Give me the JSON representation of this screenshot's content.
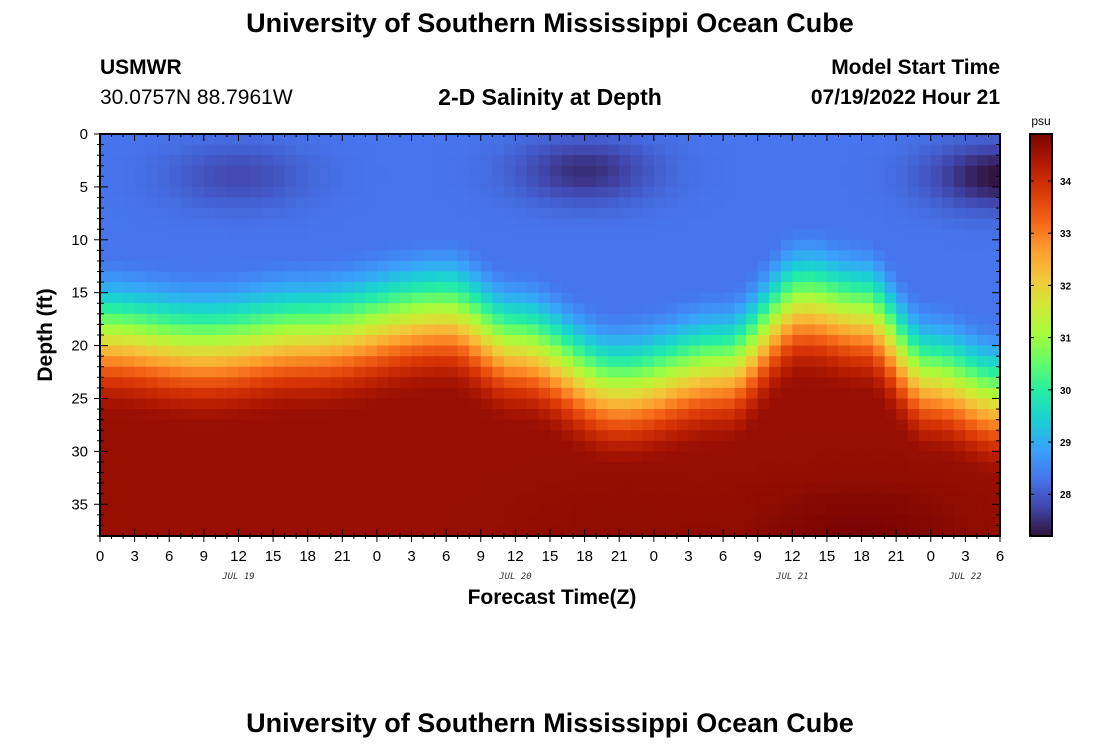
{
  "header": {
    "title": "University of Southern Mississippi Ocean Cube",
    "station": "USMWR",
    "coords": "30.0757N  88.7961W",
    "subtitle": "2-D Salinity at Depth",
    "model_start_label": "Model Start Time",
    "model_start_value": "07/19/2022 Hour 21"
  },
  "footer": {
    "title": "University of Southern Mississippi Ocean Cube"
  },
  "colors": {
    "ramp": [
      "#30123b",
      "#4145ab",
      "#4675ed",
      "#39a2fc",
      "#1bcfd4",
      "#24eca6",
      "#61fc6c",
      "#a4fc3b",
      "#d1e834",
      "#f3c63a",
      "#fe9b2d",
      "#f36315",
      "#d93806",
      "#b11901",
      "#7a0403"
    ]
  },
  "chart_data": {
    "type": "heatmap",
    "title": "2-D Salinity at Depth",
    "xlabel": "Forecast Time(Z)",
    "ylabel": "Depth (ft)",
    "colorbar_unit": "psu",
    "x_range_hours": [
      0,
      78
    ],
    "x_tick_step_hours": 3,
    "x_tick_labels": [
      "0",
      "3",
      "6",
      "9",
      "12",
      "15",
      "18",
      "21",
      "0",
      "3",
      "6",
      "9",
      "12",
      "15",
      "18",
      "21",
      "0",
      "3",
      "6",
      "9",
      "12",
      "15",
      "18",
      "21",
      "0",
      "3",
      "6"
    ],
    "date_labels": [
      {
        "label": "JUL 19",
        "hour": 12
      },
      {
        "label": "JUL 20",
        "hour": 36
      },
      {
        "label": "JUL 21",
        "hour": 60
      },
      {
        "label": "JUL 22",
        "hour": 75
      }
    ],
    "y_range": [
      0,
      38
    ],
    "y_ticks": [
      0,
      5,
      10,
      15,
      20,
      25,
      30,
      35
    ],
    "colorbar_range": [
      27.2,
      34.9
    ],
    "colorbar_ticks": [
      28,
      29,
      30,
      31,
      32,
      33,
      34
    ],
    "surface_salinity_psu": 28.3,
    "bottom_salinity_psu": 34.6,
    "halocline_depth_ft_by_hour": [
      {
        "hour": 0,
        "depth": 19
      },
      {
        "hour": 9,
        "depth": 20
      },
      {
        "hour": 18,
        "depth": 19
      },
      {
        "hour": 30,
        "depth": 17
      },
      {
        "hour": 36,
        "depth": 20
      },
      {
        "hour": 45,
        "depth": 24
      },
      {
        "hour": 54,
        "depth": 22
      },
      {
        "hour": 61,
        "depth": 16
      },
      {
        "hour": 66,
        "depth": 17
      },
      {
        "hour": 72,
        "depth": 23
      },
      {
        "hour": 78,
        "depth": 25
      }
    ],
    "halocline_thickness_ft": 15.5,
    "fresh_cores": [
      {
        "hour": 12,
        "depth": 4,
        "psu": 27.8
      },
      {
        "hour": 42,
        "depth": 3.5,
        "psu": 27.5
      },
      {
        "hour": 78,
        "depth": 4,
        "psu": 27.2
      }
    ],
    "salty_cores": [
      {
        "hour": 45,
        "depth": 38,
        "psu": 34.7
      },
      {
        "hour": 66,
        "depth": 38,
        "psu": 34.9
      }
    ]
  }
}
